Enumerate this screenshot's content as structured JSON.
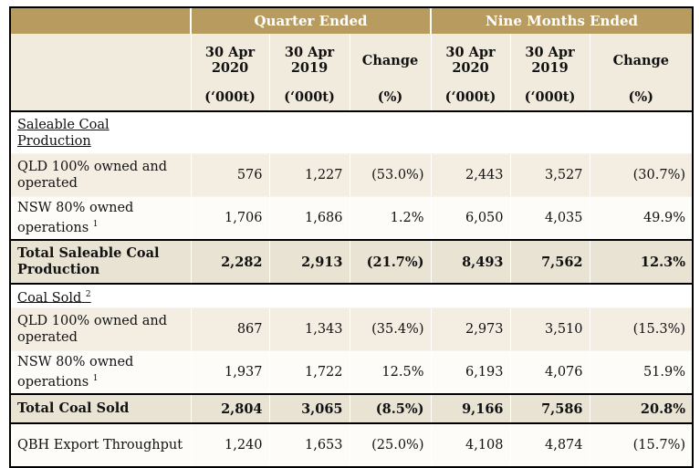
{
  "header": {
    "group_quarter": "Quarter Ended",
    "group_nine": "Nine Months Ended",
    "columns": [
      {
        "line1": "30 Apr",
        "line2": "2020",
        "unit": "(‘000t)"
      },
      {
        "line1": "30 Apr",
        "line2": "2019",
        "unit": "(‘000t)"
      },
      {
        "line1": "Change",
        "line2": "",
        "unit": "(%)"
      },
      {
        "line1": "30 Apr",
        "line2": "2020",
        "unit": "(‘000t)"
      },
      {
        "line1": "30 Apr",
        "line2": "2019",
        "unit": "(‘000t)"
      },
      {
        "line1": "Change",
        "line2": "",
        "unit": "(%)"
      }
    ]
  },
  "sections": {
    "saleable": {
      "title": "Saleable Coal Production",
      "qld": {
        "label": "QLD 100% owned and operated",
        "values": [
          "576",
          "1,227",
          "(53.0%)",
          "2,443",
          "3,527",
          "(30.7%)"
        ]
      },
      "nsw": {
        "label": "NSW 80% owned operations",
        "footnote": "1",
        "values": [
          "1,706",
          "1,686",
          "1.2%",
          "6,050",
          "4,035",
          "49.9%"
        ]
      },
      "total": {
        "label": "Total Saleable Coal Production",
        "values": [
          "2,282",
          "2,913",
          "(21.7%)",
          "8,493",
          "7,562",
          "12.3%"
        ]
      }
    },
    "sold": {
      "title": "Coal Sold",
      "footnote": "2",
      "qld": {
        "label": "QLD 100% owned and operated",
        "values": [
          "867",
          "1,343",
          "(35.4%)",
          "2,973",
          "3,510",
          "(15.3%)"
        ]
      },
      "nsw": {
        "label": "NSW 80% owned operations",
        "footnote": "1",
        "values": [
          "1,937",
          "1,722",
          "12.5%",
          "6,193",
          "4,076",
          "51.9%"
        ]
      },
      "total": {
        "label": "Total Coal Sold",
        "values": [
          "2,804",
          "3,065",
          "(8.5%)",
          "9,166",
          "7,586",
          "20.8%"
        ]
      }
    },
    "qbh": {
      "label": "QBH Export Throughput",
      "values": [
        "1,240",
        "1,653",
        "(25.0%)",
        "4,108",
        "4,874",
        "(15.7%)"
      ]
    }
  }
}
